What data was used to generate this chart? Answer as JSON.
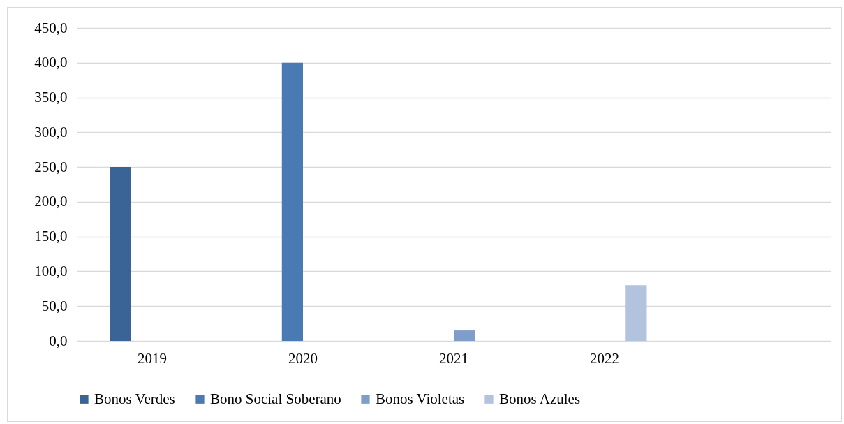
{
  "chart_data": {
    "type": "bar",
    "categories": [
      "2019",
      "2020",
      "2021",
      "2022",
      null
    ],
    "series": [
      {
        "name": "Bonos Verdes",
        "color": "#3b6496",
        "values": [
          250,
          null,
          null,
          null,
          null
        ]
      },
      {
        "name": "Bono Social Soberano",
        "color": "#4a7ab4",
        "values": [
          null,
          400,
          null,
          null,
          null
        ]
      },
      {
        "name": "Bonos Violetas",
        "color": "#7f9dc9",
        "values": [
          null,
          null,
          15,
          null,
          null
        ]
      },
      {
        "name": "Bonos Azules",
        "color": "#b4c3dd",
        "values": [
          null,
          null,
          null,
          80,
          null
        ]
      }
    ],
    "ylim": [
      0,
      450
    ],
    "yticks": [
      {
        "value": 0,
        "label": "0,0"
      },
      {
        "value": 50,
        "label": "50,0"
      },
      {
        "value": 100,
        "label": "100,0"
      },
      {
        "value": 150,
        "label": "150,0"
      },
      {
        "value": 200,
        "label": "200,0"
      },
      {
        "value": 250,
        "label": "250,0"
      },
      {
        "value": 300,
        "label": "300,0"
      },
      {
        "value": 350,
        "label": "350,0"
      },
      {
        "value": 400,
        "label": "400,0"
      },
      {
        "value": 450,
        "label": "450,0"
      }
    ],
    "grid": "y",
    "legend": "bottom"
  }
}
